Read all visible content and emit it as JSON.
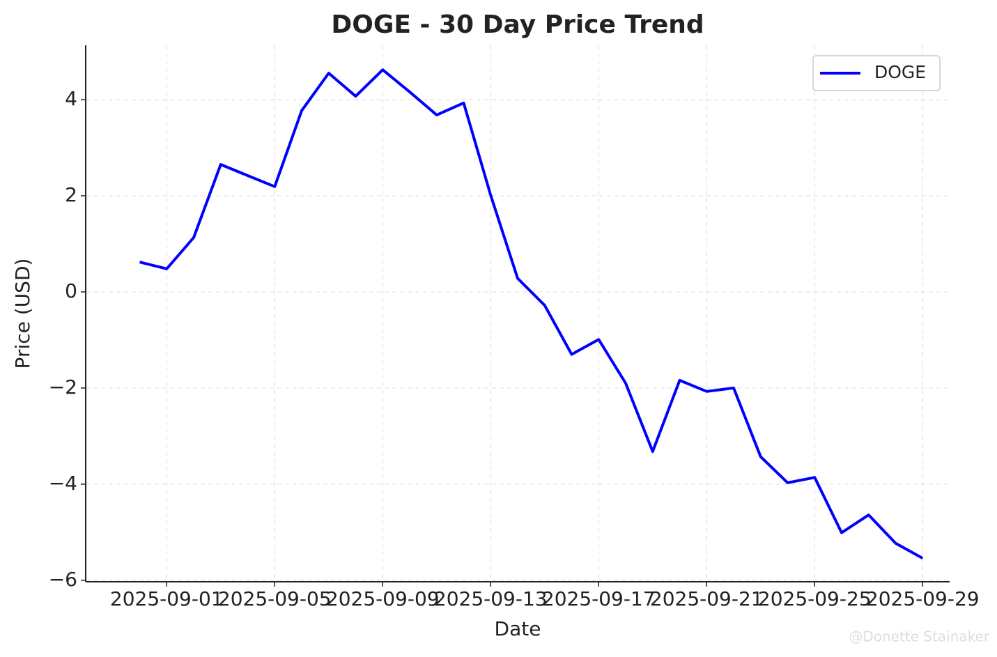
{
  "chart_data": {
    "type": "line",
    "title": "DOGE - 30 Day Price Trend",
    "x_label": "Date",
    "y_label": "Price (USD)",
    "x": [
      "2025-08-31",
      "2025-09-01",
      "2025-09-02",
      "2025-09-03",
      "2025-09-04",
      "2025-09-05",
      "2025-09-06",
      "2025-09-07",
      "2025-09-08",
      "2025-09-09",
      "2025-09-10",
      "2025-09-11",
      "2025-09-12",
      "2025-09-13",
      "2025-09-14",
      "2025-09-15",
      "2025-09-16",
      "2025-09-17",
      "2025-09-18",
      "2025-09-19",
      "2025-09-20",
      "2025-09-21",
      "2025-09-22",
      "2025-09-23",
      "2025-09-24",
      "2025-09-25",
      "2025-09-26",
      "2025-09-27",
      "2025-09-28",
      "2025-09-29"
    ],
    "series": [
      {
        "name": "DOGE",
        "color": "#0000ff",
        "values": [
          0.62,
          0.48,
          1.13,
          2.65,
          2.42,
          2.19,
          3.77,
          4.55,
          4.07,
          4.62,
          4.16,
          3.68,
          3.93,
          2.01,
          0.28,
          -0.28,
          -1.3,
          -0.99,
          -1.9,
          -3.32,
          -1.84,
          -2.07,
          -2.0,
          -3.43,
          -3.97,
          -3.86,
          -5.01,
          -4.64,
          -5.23,
          -5.54
        ]
      }
    ],
    "xlim": [
      "2025-08-29",
      "2025-09-30"
    ],
    "xticks": [
      "2025-09-01",
      "2025-09-05",
      "2025-09-09",
      "2025-09-13",
      "2025-09-17",
      "2025-09-21",
      "2025-09-25",
      "2025-09-29"
    ],
    "ylim": [
      -6.03,
      5.13
    ],
    "yticks": [
      {
        "value": -6,
        "label": "−6"
      },
      {
        "value": -4,
        "label": "−4"
      },
      {
        "value": -2,
        "label": "−2"
      },
      0,
      2,
      4
    ],
    "grid": true,
    "legend": "upper right"
  },
  "watermark": "@Donette Stainaker"
}
